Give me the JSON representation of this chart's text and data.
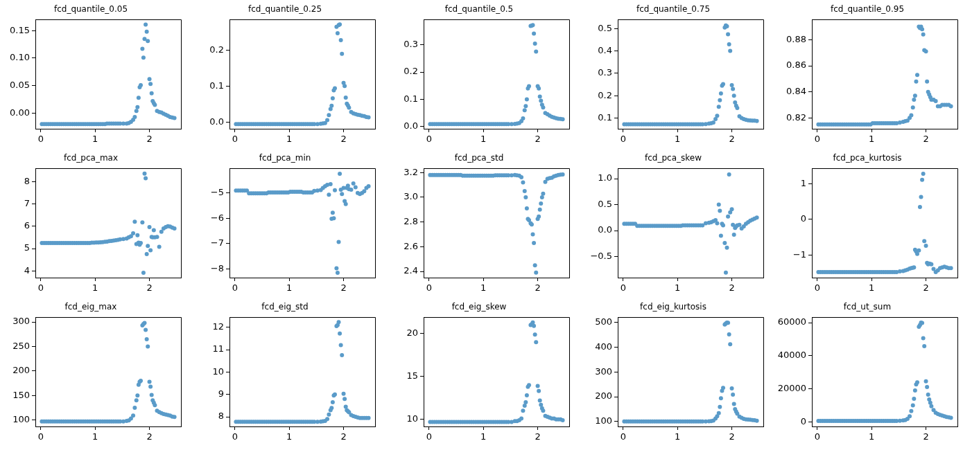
{
  "chart_data": [
    {
      "type": "scatter",
      "title": "fcd_quantile_0.05",
      "color": "#5a9bc9",
      "marker": "circle",
      "xlim": [
        -0.1,
        2.58
      ],
      "xticks": [
        0,
        1,
        2
      ],
      "ylim": [
        -0.0285,
        0.17
      ],
      "yticks": [
        {
          "value": 0,
          "label": "0.00"
        },
        {
          "value": 0.05,
          "label": "0.05"
        },
        {
          "value": 0.1,
          "label": "0.10"
        },
        {
          "value": 0.15,
          "label": "0.15"
        }
      ],
      "x": [
        0.02,
        0.06,
        0.1,
        0.14,
        0.18,
        0.22,
        0.26,
        0.3,
        0.34,
        0.38,
        0.42,
        0.46,
        0.5,
        0.54,
        0.58,
        0.62,
        0.66,
        0.7,
        0.74,
        0.78,
        0.82,
        0.86,
        0.9,
        0.94,
        0.98,
        1.02,
        1.06,
        1.1,
        1.14,
        1.18,
        1.22,
        1.26,
        1.3,
        1.34,
        1.38,
        1.42,
        1.46,
        1.52,
        1.58,
        1.62,
        1.66,
        1.7,
        1.73,
        1.76,
        1.78,
        1.8,
        1.82,
        1.84,
        1.87,
        1.89,
        1.91,
        1.93,
        1.95,
        1.97,
        2.0,
        2.02,
        2.04,
        2.06,
        2.08,
        2.1,
        2.14,
        2.18,
        2.22,
        2.26,
        2.3,
        2.34,
        2.38,
        2.42,
        2.46
      ],
      "values": [
        -0.02,
        -0.02,
        -0.02,
        -0.02,
        -0.02,
        -0.02,
        -0.02,
        -0.02,
        -0.02,
        -0.02,
        -0.02,
        -0.02,
        -0.02,
        -0.02,
        -0.02,
        -0.02,
        -0.02,
        -0.02,
        -0.02,
        -0.02,
        -0.02,
        -0.02,
        -0.02,
        -0.02,
        -0.02,
        -0.02,
        -0.02,
        -0.02,
        -0.02,
        -0.02,
        -0.019,
        -0.019,
        -0.019,
        -0.019,
        -0.019,
        -0.019,
        -0.019,
        -0.019,
        -0.019,
        -0.018,
        -0.016,
        -0.012,
        -0.007,
        0.004,
        0.011,
        0.028,
        0.047,
        0.051,
        0.117,
        0.101,
        0.135,
        0.161,
        0.148,
        0.131,
        0.062,
        0.053,
        0.036,
        0.022,
        0.018,
        0.015,
        0.004,
        0.002,
        0.001,
        -0.001,
        -0.003,
        -0.005,
        -0.007,
        -0.008,
        -0.009
      ]
    },
    {
      "type": "scatter",
      "title": "fcd_quantile_0.25",
      "color": "#5a9bc9",
      "marker": "circle",
      "xlim": [
        -0.1,
        2.58
      ],
      "xticks": [
        0,
        1,
        2
      ],
      "ylim": [
        -0.019,
        0.285
      ],
      "yticks": [
        {
          "value": 0,
          "label": "0.0"
        },
        0.1,
        0.2
      ],
      "x": [
        0.02,
        0.06,
        0.1,
        0.14,
        0.18,
        0.22,
        0.26,
        0.3,
        0.34,
        0.38,
        0.42,
        0.46,
        0.5,
        0.54,
        0.58,
        0.62,
        0.66,
        0.7,
        0.74,
        0.78,
        0.82,
        0.86,
        0.9,
        0.94,
        0.98,
        1.02,
        1.06,
        1.1,
        1.14,
        1.18,
        1.22,
        1.26,
        1.3,
        1.34,
        1.38,
        1.42,
        1.46,
        1.52,
        1.58,
        1.62,
        1.66,
        1.7,
        1.73,
        1.76,
        1.78,
        1.8,
        1.82,
        1.84,
        1.87,
        1.89,
        1.91,
        1.93,
        1.95,
        1.97,
        2.0,
        2.02,
        2.04,
        2.06,
        2.08,
        2.1,
        2.14,
        2.18,
        2.22,
        2.26,
        2.3,
        2.34,
        2.38,
        2.42,
        2.46
      ],
      "values": [
        -0.006,
        -0.006,
        -0.006,
        -0.006,
        -0.006,
        -0.006,
        -0.006,
        -0.006,
        -0.006,
        -0.006,
        -0.006,
        -0.006,
        -0.006,
        -0.006,
        -0.006,
        -0.006,
        -0.006,
        -0.006,
        -0.006,
        -0.006,
        -0.006,
        -0.006,
        -0.006,
        -0.006,
        -0.006,
        -0.006,
        -0.006,
        -0.006,
        -0.006,
        -0.006,
        -0.006,
        -0.006,
        -0.006,
        -0.006,
        -0.006,
        -0.006,
        -0.006,
        -0.006,
        -0.005,
        -0.004,
        -0.003,
        0.005,
        0.019,
        0.036,
        0.045,
        0.066,
        0.088,
        0.094,
        0.265,
        0.247,
        0.27,
        0.272,
        0.228,
        0.19,
        0.109,
        0.1,
        0.068,
        0.051,
        0.046,
        0.04,
        0.028,
        0.024,
        0.022,
        0.02,
        0.019,
        0.017,
        0.016,
        0.014,
        0.013
      ]
    },
    {
      "type": "scatter",
      "title": "fcd_quantile_0.5",
      "color": "#5a9bc9",
      "marker": "circle",
      "xlim": [
        -0.1,
        2.58
      ],
      "xticks": [
        0,
        1,
        2
      ],
      "ylim": [
        -0.008,
        0.392
      ],
      "yticks": [
        {
          "value": 0,
          "label": "0.0"
        },
        0.1,
        0.2,
        0.3
      ],
      "x": [
        0.02,
        0.06,
        0.1,
        0.14,
        0.18,
        0.22,
        0.26,
        0.3,
        0.34,
        0.38,
        0.42,
        0.46,
        0.5,
        0.54,
        0.58,
        0.62,
        0.66,
        0.7,
        0.74,
        0.78,
        0.82,
        0.86,
        0.9,
        0.94,
        0.98,
        1.02,
        1.06,
        1.1,
        1.14,
        1.18,
        1.22,
        1.26,
        1.3,
        1.34,
        1.38,
        1.42,
        1.46,
        1.52,
        1.58,
        1.62,
        1.66,
        1.7,
        1.73,
        1.76,
        1.78,
        1.8,
        1.82,
        1.84,
        1.87,
        1.89,
        1.91,
        1.93,
        1.95,
        1.97,
        2.0,
        2.02,
        2.04,
        2.06,
        2.08,
        2.1,
        2.14,
        2.18,
        2.22,
        2.26,
        2.3,
        2.34,
        2.38,
        2.42,
        2.46
      ],
      "values": [
        0.009,
        0.009,
        0.009,
        0.009,
        0.009,
        0.009,
        0.009,
        0.009,
        0.009,
        0.009,
        0.009,
        0.009,
        0.009,
        0.009,
        0.009,
        0.009,
        0.009,
        0.009,
        0.009,
        0.009,
        0.009,
        0.009,
        0.009,
        0.009,
        0.009,
        0.009,
        0.009,
        0.009,
        0.009,
        0.009,
        0.009,
        0.009,
        0.009,
        0.009,
        0.009,
        0.009,
        0.009,
        0.009,
        0.01,
        0.011,
        0.013,
        0.02,
        0.03,
        0.06,
        0.075,
        0.1,
        0.14,
        0.148,
        0.369,
        0.37,
        0.372,
        0.341,
        0.304,
        0.275,
        0.148,
        0.14,
        0.11,
        0.095,
        0.08,
        0.07,
        0.05,
        0.045,
        0.04,
        0.036,
        0.033,
        0.031,
        0.029,
        0.028,
        0.027
      ]
    },
    {
      "type": "scatter",
      "title": "fcd_quantile_0.75",
      "color": "#5a9bc9",
      "marker": "circle",
      "xlim": [
        -0.1,
        2.58
      ],
      "xticks": [
        0,
        1,
        2
      ],
      "ylim": [
        0.052,
        0.54
      ],
      "yticks": [
        0.1,
        0.2,
        0.3,
        0.4,
        0.5
      ],
      "x": [
        0.02,
        0.06,
        0.1,
        0.14,
        0.18,
        0.22,
        0.26,
        0.3,
        0.34,
        0.38,
        0.42,
        0.46,
        0.5,
        0.54,
        0.58,
        0.62,
        0.66,
        0.7,
        0.74,
        0.78,
        0.82,
        0.86,
        0.9,
        0.94,
        0.98,
        1.02,
        1.06,
        1.1,
        1.14,
        1.18,
        1.22,
        1.26,
        1.3,
        1.34,
        1.38,
        1.42,
        1.46,
        1.52,
        1.58,
        1.62,
        1.66,
        1.7,
        1.73,
        1.76,
        1.78,
        1.8,
        1.82,
        1.84,
        1.87,
        1.89,
        1.91,
        1.93,
        1.95,
        1.97,
        2.0,
        2.02,
        2.04,
        2.06,
        2.08,
        2.1,
        2.14,
        2.18,
        2.22,
        2.26,
        2.3,
        2.34,
        2.38,
        2.42,
        2.46
      ],
      "values": [
        0.072,
        0.072,
        0.072,
        0.072,
        0.072,
        0.072,
        0.072,
        0.072,
        0.072,
        0.072,
        0.072,
        0.072,
        0.072,
        0.072,
        0.072,
        0.072,
        0.072,
        0.072,
        0.072,
        0.072,
        0.072,
        0.072,
        0.072,
        0.072,
        0.072,
        0.072,
        0.072,
        0.072,
        0.072,
        0.072,
        0.072,
        0.072,
        0.072,
        0.072,
        0.072,
        0.072,
        0.072,
        0.073,
        0.075,
        0.077,
        0.08,
        0.095,
        0.11,
        0.15,
        0.18,
        0.21,
        0.245,
        0.252,
        0.505,
        0.514,
        0.51,
        0.475,
        0.43,
        0.4,
        0.247,
        0.23,
        0.2,
        0.17,
        0.155,
        0.145,
        0.108,
        0.1,
        0.095,
        0.092,
        0.09,
        0.089,
        0.088,
        0.088,
        0.087
      ]
    },
    {
      "type": "scatter",
      "title": "fcd_quantile_0.95",
      "color": "#5a9bc9",
      "marker": "circle",
      "xlim": [
        -0.1,
        2.58
      ],
      "xticks": [
        0,
        1,
        2
      ],
      "ylim": [
        0.8117,
        0.8954
      ],
      "yticks": [
        0.82,
        0.84,
        0.86,
        0.88
      ],
      "x": [
        0.02,
        0.06,
        0.1,
        0.14,
        0.18,
        0.22,
        0.26,
        0.3,
        0.34,
        0.38,
        0.42,
        0.46,
        0.5,
        0.54,
        0.58,
        0.62,
        0.66,
        0.7,
        0.74,
        0.78,
        0.82,
        0.86,
        0.9,
        0.94,
        0.98,
        1.02,
        1.06,
        1.1,
        1.14,
        1.18,
        1.22,
        1.26,
        1.3,
        1.34,
        1.38,
        1.42,
        1.46,
        1.52,
        1.58,
        1.62,
        1.66,
        1.7,
        1.73,
        1.76,
        1.78,
        1.8,
        1.82,
        1.84,
        1.87,
        1.89,
        1.91,
        1.93,
        1.95,
        1.97,
        2.0,
        2.02,
        2.04,
        2.06,
        2.08,
        2.1,
        2.14,
        2.18,
        2.22,
        2.26,
        2.3,
        2.34,
        2.38,
        2.42,
        2.46
      ],
      "values": [
        0.815,
        0.815,
        0.815,
        0.815,
        0.815,
        0.815,
        0.815,
        0.815,
        0.815,
        0.815,
        0.815,
        0.815,
        0.815,
        0.815,
        0.815,
        0.815,
        0.815,
        0.815,
        0.815,
        0.815,
        0.815,
        0.815,
        0.815,
        0.815,
        0.815,
        0.816,
        0.816,
        0.816,
        0.816,
        0.816,
        0.816,
        0.816,
        0.816,
        0.816,
        0.816,
        0.816,
        0.816,
        0.8165,
        0.817,
        0.8175,
        0.818,
        0.82,
        0.822,
        0.828,
        0.834,
        0.837,
        0.848,
        0.853,
        0.89,
        0.889,
        0.89,
        0.888,
        0.884,
        0.872,
        0.871,
        0.848,
        0.84,
        0.838,
        0.836,
        0.834,
        0.834,
        0.833,
        0.829,
        0.829,
        0.83,
        0.83,
        0.83,
        0.83,
        0.829
      ]
    },
    {
      "type": "scatter",
      "title": "fcd_pca_max",
      "color": "#5a9bc9",
      "marker": "circle",
      "xlim": [
        -0.1,
        2.58
      ],
      "xticks": [
        0,
        1,
        2
      ],
      "ylim": [
        3.7,
        8.58
      ],
      "yticks": [
        4,
        5,
        6,
        7,
        8
      ],
      "x": [
        0.02,
        0.06,
        0.1,
        0.14,
        0.18,
        0.22,
        0.26,
        0.3,
        0.34,
        0.38,
        0.42,
        0.46,
        0.5,
        0.54,
        0.58,
        0.62,
        0.66,
        0.7,
        0.74,
        0.78,
        0.82,
        0.86,
        0.9,
        0.94,
        0.98,
        1.02,
        1.06,
        1.1,
        1.14,
        1.18,
        1.22,
        1.26,
        1.3,
        1.34,
        1.38,
        1.42,
        1.46,
        1.52,
        1.58,
        1.62,
        1.66,
        1.7,
        1.73,
        1.76,
        1.78,
        1.8,
        1.82,
        1.84,
        1.87,
        1.89,
        1.91,
        1.93,
        1.95,
        1.97,
        2.0,
        2.02,
        2.04,
        2.06,
        2.08,
        2.1,
        2.14,
        2.18,
        2.22,
        2.26,
        2.3,
        2.34,
        2.38,
        2.42,
        2.46
      ],
      "values": [
        5.25,
        5.25,
        5.25,
        5.25,
        5.25,
        5.25,
        5.25,
        5.25,
        5.25,
        5.25,
        5.25,
        5.25,
        5.25,
        5.25,
        5.25,
        5.25,
        5.25,
        5.25,
        5.25,
        5.25,
        5.25,
        5.25,
        5.25,
        5.26,
        5.26,
        5.27,
        5.27,
        5.28,
        5.29,
        5.3,
        5.31,
        5.33,
        5.34,
        5.36,
        5.37,
        5.39,
        5.41,
        5.43,
        5.45,
        5.5,
        5.55,
        5.68,
        6.2,
        5.2,
        5.6,
        5.26,
        5.17,
        5.25,
        6.17,
        3.92,
        8.35,
        8.14,
        4.75,
        5.12,
        5.96,
        4.92,
        5.52,
        5.5,
        5.82,
        5.5,
        5.52,
        5.08,
        5.75,
        5.9,
        5.96,
        6.0,
        5.98,
        5.94,
        5.9
      ]
    },
    {
      "type": "scatter",
      "title": "fcd_pca_min",
      "color": "#5a9bc9",
      "marker": "circle",
      "xlim": [
        -0.1,
        2.58
      ],
      "xticks": [
        0,
        1,
        2
      ],
      "ylim": [
        -8.35,
        -4.03
      ],
      "yticks": [
        {
          "value": -8,
          "label": "−8"
        },
        {
          "value": -7,
          "label": "−7"
        },
        {
          "value": -6,
          "label": "−6"
        },
        {
          "value": -5,
          "label": "−5"
        }
      ],
      "x": [
        0.02,
        0.06,
        0.1,
        0.14,
        0.18,
        0.22,
        0.26,
        0.3,
        0.34,
        0.38,
        0.42,
        0.46,
        0.5,
        0.54,
        0.58,
        0.62,
        0.66,
        0.7,
        0.74,
        0.78,
        0.82,
        0.86,
        0.9,
        0.94,
        0.98,
        1.02,
        1.06,
        1.1,
        1.14,
        1.18,
        1.22,
        1.26,
        1.3,
        1.34,
        1.38,
        1.42,
        1.46,
        1.52,
        1.58,
        1.62,
        1.66,
        1.7,
        1.73,
        1.76,
        1.78,
        1.8,
        1.82,
        1.84,
        1.87,
        1.89,
        1.91,
        1.93,
        1.95,
        1.97,
        2.0,
        2.02,
        2.04,
        2.06,
        2.08,
        2.1,
        2.14,
        2.18,
        2.22,
        2.26,
        2.3,
        2.34,
        2.38,
        2.42,
        2.46
      ],
      "values": [
        -4.9,
        -4.9,
        -4.9,
        -4.9,
        -4.9,
        -4.9,
        -5.01,
        -5.01,
        -5.01,
        -5.01,
        -5.01,
        -5.01,
        -5.01,
        -5.01,
        -5.01,
        -4.98,
        -4.98,
        -4.98,
        -4.98,
        -4.98,
        -4.98,
        -4.98,
        -4.98,
        -4.98,
        -4.98,
        -4.95,
        -4.95,
        -4.95,
        -4.95,
        -4.95,
        -4.95,
        -4.98,
        -4.98,
        -4.98,
        -4.98,
        -4.98,
        -4.92,
        -4.9,
        -4.88,
        -4.8,
        -4.73,
        -4.68,
        -5.07,
        -4.65,
        -6.02,
        -5.78,
        -6.0,
        -4.89,
        -7.98,
        -8.16,
        -6.94,
        -4.24,
        -4.87,
        -5.04,
        -4.8,
        -5.32,
        -5.44,
        -4.8,
        -4.71,
        -4.85,
        -4.87,
        -4.62,
        -4.77,
        -5.0,
        -5.04,
        -5.0,
        -4.93,
        -4.8,
        -4.73
      ]
    },
    {
      "type": "scatter",
      "title": "fcd_pca_std",
      "color": "#5a9bc9",
      "marker": "circle",
      "xlim": [
        -0.1,
        2.58
      ],
      "xticks": [
        0,
        1,
        2
      ],
      "ylim": [
        2.35,
        3.233
      ],
      "yticks": [
        2.4,
        2.6,
        2.8,
        {
          "value": 3,
          "label": "3.0"
        },
        3.2
      ],
      "x": [
        0.02,
        0.06,
        0.1,
        0.14,
        0.18,
        0.22,
        0.26,
        0.3,
        0.34,
        0.38,
        0.42,
        0.46,
        0.5,
        0.54,
        0.58,
        0.62,
        0.66,
        0.7,
        0.74,
        0.78,
        0.82,
        0.86,
        0.9,
        0.94,
        0.98,
        1.02,
        1.06,
        1.1,
        1.14,
        1.18,
        1.22,
        1.26,
        1.3,
        1.34,
        1.38,
        1.42,
        1.46,
        1.52,
        1.58,
        1.62,
        1.66,
        1.7,
        1.73,
        1.76,
        1.78,
        1.8,
        1.82,
        1.84,
        1.87,
        1.89,
        1.91,
        1.93,
        1.95,
        1.97,
        2.0,
        2.02,
        2.04,
        2.06,
        2.08,
        2.1,
        2.14,
        2.18,
        2.22,
        2.26,
        2.3,
        2.34,
        2.38,
        2.42,
        2.46
      ],
      "values": [
        3.18,
        3.18,
        3.18,
        3.18,
        3.18,
        3.18,
        3.18,
        3.18,
        3.18,
        3.18,
        3.18,
        3.18,
        3.18,
        3.18,
        3.18,
        3.175,
        3.175,
        3.175,
        3.175,
        3.175,
        3.175,
        3.175,
        3.175,
        3.175,
        3.175,
        3.175,
        3.175,
        3.175,
        3.175,
        3.175,
        3.178,
        3.178,
        3.178,
        3.178,
        3.178,
        3.178,
        3.178,
        3.178,
        3.18,
        3.178,
        3.175,
        3.163,
        3.12,
        3.05,
        3.0,
        2.91,
        2.825,
        2.815,
        2.79,
        2.78,
        2.7,
        2.63,
        2.45,
        2.39,
        2.825,
        2.845,
        2.9,
        2.95,
        3.0,
        3.03,
        3.125,
        3.15,
        3.155,
        3.158,
        3.17,
        3.175,
        3.18,
        3.183,
        3.185
      ]
    },
    {
      "type": "scatter",
      "title": "fcd_pca_skew",
      "color": "#5a9bc9",
      "marker": "circle",
      "xlim": [
        -0.1,
        2.58
      ],
      "xticks": [
        0,
        1,
        2
      ],
      "ylim": [
        -0.905,
        1.196
      ],
      "yticks": [
        {
          "value": -0.5,
          "label": "−0.5"
        },
        {
          "value": 0,
          "label": "0.0"
        },
        0.5,
        {
          "value": 1,
          "label": "1.0"
        }
      ],
      "x": [
        0.02,
        0.06,
        0.1,
        0.14,
        0.18,
        0.22,
        0.26,
        0.3,
        0.34,
        0.38,
        0.42,
        0.46,
        0.5,
        0.54,
        0.58,
        0.62,
        0.66,
        0.7,
        0.74,
        0.78,
        0.82,
        0.86,
        0.9,
        0.94,
        0.98,
        1.02,
        1.06,
        1.1,
        1.14,
        1.18,
        1.22,
        1.26,
        1.3,
        1.34,
        1.38,
        1.42,
        1.46,
        1.52,
        1.58,
        1.62,
        1.66,
        1.7,
        1.73,
        1.76,
        1.78,
        1.8,
        1.82,
        1.84,
        1.87,
        1.89,
        1.91,
        1.93,
        1.95,
        1.97,
        2.0,
        2.02,
        2.04,
        2.06,
        2.08,
        2.1,
        2.14,
        2.18,
        2.22,
        2.26,
        2.3,
        2.34,
        2.38,
        2.42,
        2.46
      ],
      "values": [
        0.13,
        0.13,
        0.13,
        0.13,
        0.13,
        0.13,
        0.09,
        0.09,
        0.09,
        0.09,
        0.09,
        0.09,
        0.09,
        0.09,
        0.09,
        0.09,
        0.09,
        0.09,
        0.09,
        0.09,
        0.09,
        0.09,
        0.09,
        0.09,
        0.09,
        0.09,
        0.09,
        0.1,
        0.1,
        0.1,
        0.1,
        0.1,
        0.1,
        0.1,
        0.1,
        0.1,
        0.1,
        0.14,
        0.15,
        0.16,
        0.18,
        0.2,
        0.14,
        0.5,
        0.38,
        -0.1,
        0.13,
        0.1,
        -0.24,
        -0.81,
        -0.33,
        0.27,
        1.08,
        0.35,
        0.41,
        0.11,
        -0.08,
        0.05,
        0.08,
        0.1,
        0.11,
        0.04,
        0.08,
        0.13,
        0.16,
        0.19,
        0.21,
        0.23,
        0.25
      ]
    },
    {
      "type": "scatter",
      "title": "fcd_pca_kurtosis",
      "color": "#5a9bc9",
      "marker": "circle",
      "xlim": [
        -0.1,
        2.58
      ],
      "xticks": [
        0,
        1,
        2
      ],
      "ylim": [
        -1.635,
        1.43
      ],
      "yticks": [
        {
          "value": -1,
          "label": "−1"
        },
        0,
        1
      ],
      "x": [
        0.02,
        0.06,
        0.1,
        0.14,
        0.18,
        0.22,
        0.26,
        0.3,
        0.34,
        0.38,
        0.42,
        0.46,
        0.5,
        0.54,
        0.58,
        0.62,
        0.66,
        0.7,
        0.74,
        0.78,
        0.82,
        0.86,
        0.9,
        0.94,
        0.98,
        1.02,
        1.06,
        1.1,
        1.14,
        1.18,
        1.22,
        1.26,
        1.3,
        1.34,
        1.38,
        1.42,
        1.46,
        1.52,
        1.58,
        1.62,
        1.66,
        1.7,
        1.73,
        1.76,
        1.78,
        1.8,
        1.82,
        1.84,
        1.87,
        1.89,
        1.91,
        1.93,
        1.95,
        1.97,
        2.0,
        2.02,
        2.04,
        2.06,
        2.08,
        2.1,
        2.14,
        2.18,
        2.22,
        2.26,
        2.3,
        2.34,
        2.38,
        2.42,
        2.46
      ],
      "values": [
        -1.48,
        -1.48,
        -1.48,
        -1.48,
        -1.48,
        -1.48,
        -1.48,
        -1.48,
        -1.48,
        -1.48,
        -1.48,
        -1.48,
        -1.48,
        -1.48,
        -1.48,
        -1.48,
        -1.48,
        -1.48,
        -1.48,
        -1.48,
        -1.48,
        -1.48,
        -1.48,
        -1.48,
        -1.48,
        -1.48,
        -1.48,
        -1.48,
        -1.48,
        -1.48,
        -1.48,
        -1.48,
        -1.48,
        -1.48,
        -1.48,
        -1.48,
        -1.48,
        -1.46,
        -1.45,
        -1.43,
        -1.41,
        -1.38,
        -1.37,
        -1.36,
        -1.35,
        -0.85,
        -0.9,
        -0.97,
        -0.87,
        0.35,
        0.63,
        1.11,
        1.28,
        -0.61,
        -0.74,
        -1.22,
        -1.26,
        -1.24,
        -1.25,
        -1.26,
        -1.39,
        -1.48,
        -1.43,
        -1.37,
        -1.35,
        -1.33,
        -1.35,
        -1.37,
        -1.37
      ]
    },
    {
      "type": "scatter",
      "title": "fcd_eig_max",
      "color": "#5a9bc9",
      "marker": "circle",
      "xlim": [
        -0.1,
        2.58
      ],
      "xticks": [
        0,
        1,
        2
      ],
      "ylim": [
        86.7,
        309.5
      ],
      "yticks": [
        100,
        150,
        200,
        250,
        300
      ],
      "x": [
        0.02,
        0.06,
        0.1,
        0.14,
        0.18,
        0.22,
        0.26,
        0.3,
        0.34,
        0.38,
        0.42,
        0.46,
        0.5,
        0.54,
        0.58,
        0.62,
        0.66,
        0.7,
        0.74,
        0.78,
        0.82,
        0.86,
        0.9,
        0.94,
        0.98,
        1.02,
        1.06,
        1.1,
        1.14,
        1.18,
        1.22,
        1.26,
        1.3,
        1.34,
        1.38,
        1.42,
        1.46,
        1.52,
        1.58,
        1.62,
        1.66,
        1.7,
        1.73,
        1.76,
        1.78,
        1.8,
        1.82,
        1.84,
        1.87,
        1.89,
        1.91,
        1.93,
        1.95,
        1.97,
        2.0,
        2.02,
        2.04,
        2.06,
        2.08,
        2.1,
        2.14,
        2.18,
        2.22,
        2.26,
        2.3,
        2.34,
        2.38,
        2.42,
        2.46
      ],
      "values": [
        97,
        97,
        97,
        97,
        97,
        97,
        97,
        97,
        97,
        97,
        97,
        97,
        97,
        97,
        97,
        97,
        97,
        97,
        97,
        97,
        97,
        97,
        97,
        97,
        97,
        97,
        97,
        97,
        97,
        97,
        97,
        97,
        97,
        97,
        97,
        97,
        97,
        97,
        98,
        99,
        103,
        109,
        125,
        140,
        150,
        172,
        178,
        180,
        293,
        296,
        298,
        284,
        265,
        250,
        178,
        168,
        151,
        140,
        135,
        130,
        119,
        116,
        114,
        112,
        111,
        110,
        109,
        107,
        106
      ]
    },
    {
      "type": "scatter",
      "title": "fcd_eig_std",
      "color": "#5a9bc9",
      "marker": "circle",
      "xlim": [
        -0.1,
        2.58
      ],
      "xticks": [
        0,
        1,
        2
      ],
      "ylim": [
        7.57,
        12.44
      ],
      "yticks": [
        8,
        9,
        10,
        11,
        12
      ],
      "x": [
        0.02,
        0.06,
        0.1,
        0.14,
        0.18,
        0.22,
        0.26,
        0.3,
        0.34,
        0.38,
        0.42,
        0.46,
        0.5,
        0.54,
        0.58,
        0.62,
        0.66,
        0.7,
        0.74,
        0.78,
        0.82,
        0.86,
        0.9,
        0.94,
        0.98,
        1.02,
        1.06,
        1.1,
        1.14,
        1.18,
        1.22,
        1.26,
        1.3,
        1.34,
        1.38,
        1.42,
        1.46,
        1.52,
        1.58,
        1.62,
        1.66,
        1.7,
        1.73,
        1.76,
        1.78,
        1.8,
        1.82,
        1.84,
        1.87,
        1.89,
        1.91,
        1.93,
        1.95,
        1.97,
        2.0,
        2.02,
        2.04,
        2.06,
        2.08,
        2.1,
        2.14,
        2.18,
        2.22,
        2.26,
        2.3,
        2.34,
        2.38,
        2.42,
        2.46
      ],
      "values": [
        7.78,
        7.78,
        7.78,
        7.78,
        7.78,
        7.78,
        7.78,
        7.78,
        7.78,
        7.78,
        7.78,
        7.78,
        7.78,
        7.78,
        7.78,
        7.78,
        7.78,
        7.78,
        7.78,
        7.78,
        7.78,
        7.78,
        7.78,
        7.78,
        7.78,
        7.78,
        7.78,
        7.78,
        7.78,
        7.78,
        7.78,
        7.78,
        7.78,
        7.78,
        7.78,
        7.78,
        7.78,
        7.78,
        7.79,
        7.8,
        7.82,
        7.9,
        8.1,
        8.3,
        8.4,
        8.65,
        8.95,
        9.0,
        12.05,
        12.1,
        12.23,
        11.72,
        11.2,
        10.75,
        9.03,
        8.8,
        8.45,
        8.3,
        8.25,
        8.2,
        8.08,
        8.03,
        8.0,
        7.97,
        7.95,
        7.95,
        7.95,
        7.95,
        7.95
      ]
    },
    {
      "type": "scatter",
      "title": "fcd_eig_skew",
      "color": "#5a9bc9",
      "marker": "circle",
      "xlim": [
        -0.1,
        2.58
      ],
      "xticks": [
        0,
        1,
        2
      ],
      "ylim": [
        9.17,
        21.9
      ],
      "yticks": [
        10,
        15,
        20
      ],
      "x": [
        0.02,
        0.06,
        0.1,
        0.14,
        0.18,
        0.22,
        0.26,
        0.3,
        0.34,
        0.38,
        0.42,
        0.46,
        0.5,
        0.54,
        0.58,
        0.62,
        0.66,
        0.7,
        0.74,
        0.78,
        0.82,
        0.86,
        0.9,
        0.94,
        0.98,
        1.02,
        1.06,
        1.1,
        1.14,
        1.18,
        1.22,
        1.26,
        1.3,
        1.34,
        1.38,
        1.42,
        1.46,
        1.52,
        1.58,
        1.62,
        1.66,
        1.7,
        1.73,
        1.76,
        1.78,
        1.8,
        1.82,
        1.84,
        1.87,
        1.89,
        1.91,
        1.93,
        1.95,
        1.97,
        2.0,
        2.02,
        2.04,
        2.06,
        2.08,
        2.1,
        2.14,
        2.18,
        2.22,
        2.26,
        2.3,
        2.34,
        2.38,
        2.42,
        2.46
      ],
      "values": [
        9.7,
        9.7,
        9.7,
        9.7,
        9.7,
        9.7,
        9.7,
        9.7,
        9.7,
        9.7,
        9.7,
        9.7,
        9.7,
        9.7,
        9.7,
        9.7,
        9.7,
        9.7,
        9.7,
        9.7,
        9.7,
        9.7,
        9.7,
        9.7,
        9.7,
        9.7,
        9.7,
        9.7,
        9.7,
        9.7,
        9.7,
        9.7,
        9.7,
        9.7,
        9.7,
        9.7,
        9.7,
        9.7,
        9.8,
        9.8,
        9.9,
        10.1,
        11.0,
        11.6,
        12.0,
        12.8,
        13.8,
        14.0,
        21.0,
        21.1,
        21.3,
        20.9,
        19.9,
        19.0,
        13.9,
        13.3,
        12.2,
        11.7,
        11.3,
        11.0,
        10.4,
        10.3,
        10.2,
        10.1,
        10.1,
        10.0,
        10.0,
        10.0,
        9.9
      ]
    },
    {
      "type": "scatter",
      "title": "fcd_eig_kurtosis",
      "color": "#5a9bc9",
      "marker": "circle",
      "xlim": [
        -0.1,
        2.58
      ],
      "xticks": [
        0,
        1,
        2
      ],
      "ylim": [
        80,
        521
      ],
      "yticks": [
        100,
        200,
        300,
        400,
        500
      ],
      "x": [
        0.02,
        0.06,
        0.1,
        0.14,
        0.18,
        0.22,
        0.26,
        0.3,
        0.34,
        0.38,
        0.42,
        0.46,
        0.5,
        0.54,
        0.58,
        0.62,
        0.66,
        0.7,
        0.74,
        0.78,
        0.82,
        0.86,
        0.9,
        0.94,
        0.98,
        1.02,
        1.06,
        1.1,
        1.14,
        1.18,
        1.22,
        1.26,
        1.3,
        1.34,
        1.38,
        1.42,
        1.46,
        1.52,
        1.58,
        1.62,
        1.66,
        1.7,
        1.73,
        1.76,
        1.78,
        1.8,
        1.82,
        1.84,
        1.87,
        1.89,
        1.91,
        1.93,
        1.95,
        1.97,
        2.0,
        2.02,
        2.04,
        2.06,
        2.08,
        2.1,
        2.14,
        2.18,
        2.22,
        2.26,
        2.3,
        2.34,
        2.38,
        2.42,
        2.46
      ],
      "values": [
        100,
        100,
        100,
        100,
        100,
        100,
        100,
        100,
        100,
        100,
        100,
        100,
        100,
        100,
        100,
        100,
        100,
        100,
        100,
        100,
        100,
        100,
        100,
        100,
        100,
        100,
        100,
        100,
        100,
        100,
        100,
        100,
        100,
        100,
        100,
        100,
        100,
        100,
        101,
        102,
        104,
        112,
        121,
        134,
        159,
        194,
        224,
        236,
        492,
        496,
        500,
        499,
        452,
        412,
        234,
        209,
        171,
        150,
        140,
        132,
        120,
        115,
        111,
        109,
        108,
        107,
        106,
        105,
        103
      ]
    },
    {
      "type": "scatter",
      "title": "fcd_ut_sum",
      "color": "#5a9bc9",
      "marker": "circle",
      "xlim": [
        -0.1,
        2.58
      ],
      "xticks": [
        0,
        1,
        2
      ],
      "ylim": [
        -2800,
        63200
      ],
      "yticks": [
        0,
        20000,
        40000,
        60000
      ],
      "x": [
        0.02,
        0.06,
        0.1,
        0.14,
        0.18,
        0.22,
        0.26,
        0.3,
        0.34,
        0.38,
        0.42,
        0.46,
        0.5,
        0.54,
        0.58,
        0.62,
        0.66,
        0.7,
        0.74,
        0.78,
        0.82,
        0.86,
        0.9,
        0.94,
        0.98,
        1.02,
        1.06,
        1.1,
        1.14,
        1.18,
        1.22,
        1.26,
        1.3,
        1.34,
        1.38,
        1.42,
        1.46,
        1.52,
        1.58,
        1.62,
        1.66,
        1.7,
        1.73,
        1.76,
        1.78,
        1.8,
        1.82,
        1.84,
        1.87,
        1.89,
        1.91,
        1.93,
        1.95,
        1.97,
        2.0,
        2.02,
        2.04,
        2.06,
        2.08,
        2.1,
        2.14,
        2.18,
        2.22,
        2.26,
        2.3,
        2.34,
        2.38,
        2.42,
        2.46
      ],
      "values": [
        500,
        500,
        500,
        500,
        500,
        500,
        500,
        500,
        500,
        500,
        500,
        500,
        500,
        500,
        500,
        500,
        500,
        500,
        500,
        500,
        500,
        500,
        500,
        500,
        500,
        500,
        500,
        500,
        500,
        500,
        500,
        500,
        500,
        500,
        500,
        500,
        500,
        700,
        900,
        1100,
        1800,
        3400,
        6500,
        10000,
        14000,
        19000,
        22600,
        23900,
        57500,
        58500,
        60000,
        59800,
        50600,
        45800,
        24500,
        21100,
        16500,
        13500,
        11500,
        9500,
        7100,
        5500,
        4700,
        4200,
        3800,
        3400,
        3000,
        2700,
        2400
      ]
    }
  ]
}
